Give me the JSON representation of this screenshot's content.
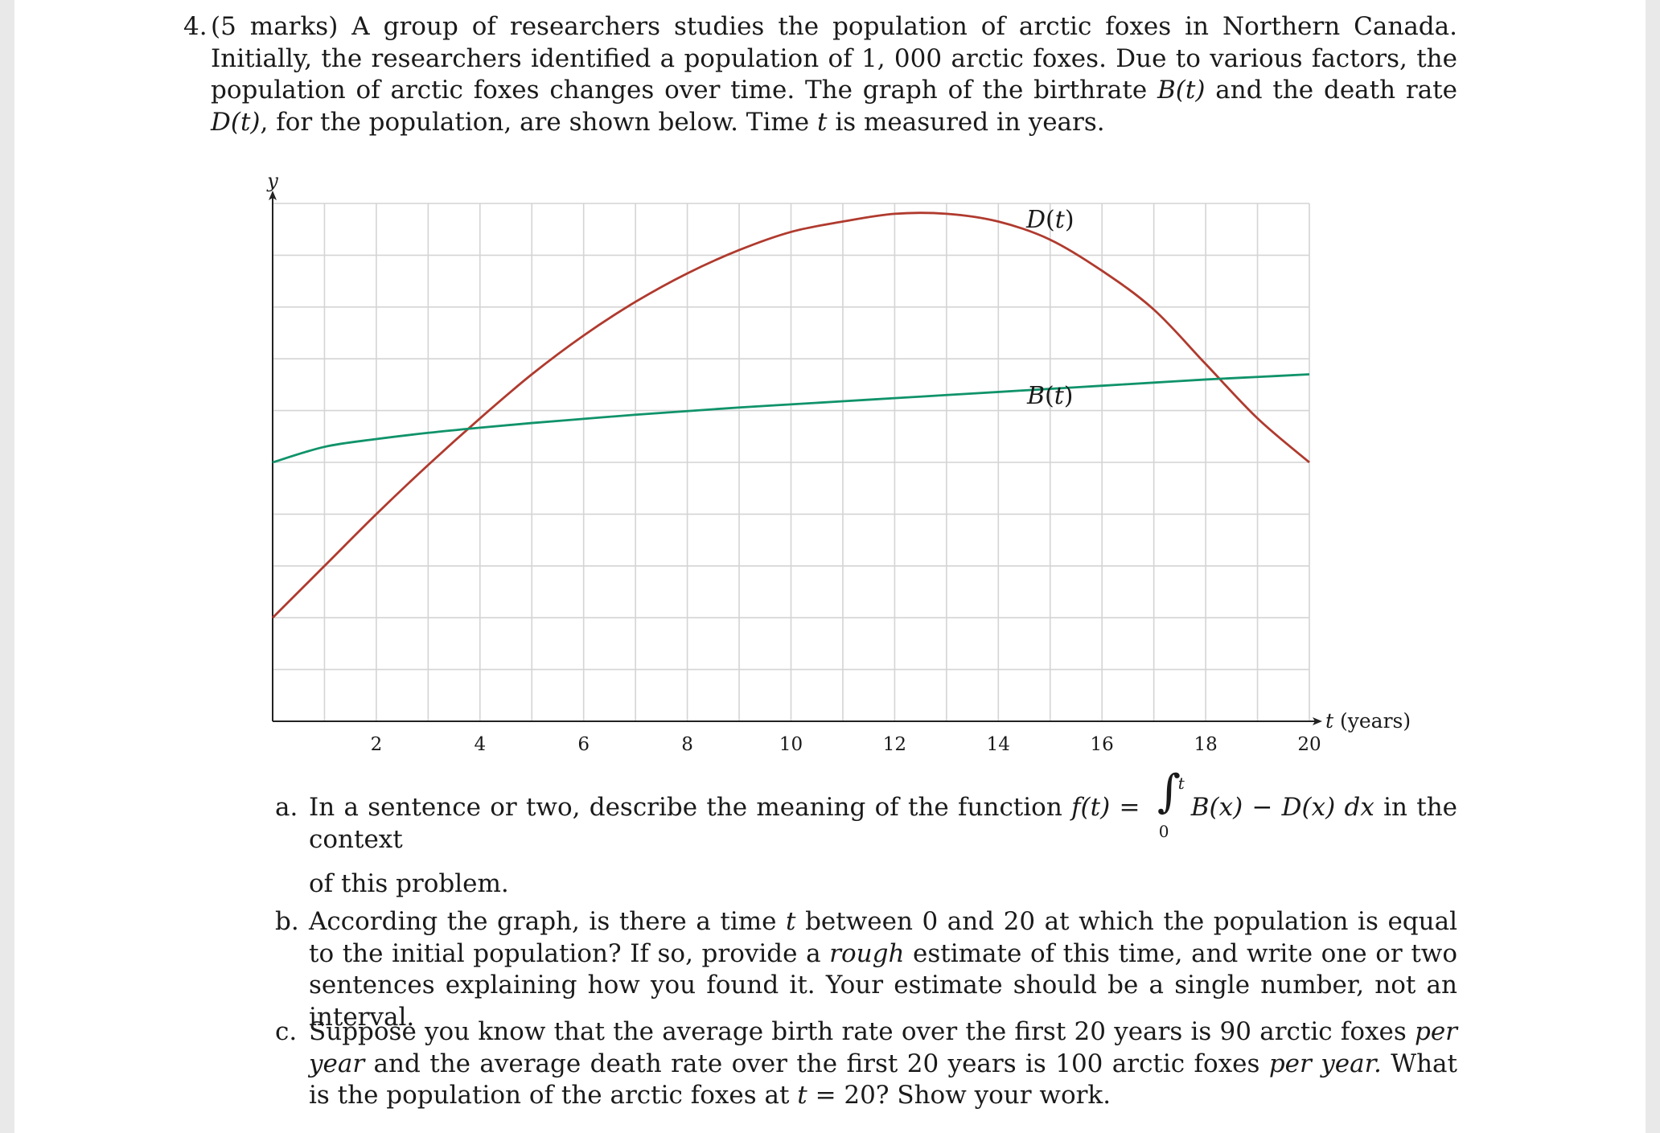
{
  "question": {
    "number": "4.",
    "text_1": "(5 marks) A group of researchers studies the population of arctic foxes in Northern Canada. Initially, the researchers identified a population of 1, 000 arctic foxes. Due to various factors, the population of arctic foxes changes over time. The graph of the birthrate ",
    "b_of_t": "B(t)",
    "text_2": " and the death rate ",
    "d_of_t": "D(t)",
    "text_3": ", for the population, are shown below. Time ",
    "t_var": "t",
    "text_4": " is measured in years."
  },
  "chart_data": {
    "type": "line",
    "title": "",
    "xlabel": "t (years)",
    "ylabel": "y",
    "xlim": [
      0,
      20
    ],
    "ylim": [
      0,
      10
    ],
    "x_ticks": [
      2,
      4,
      6,
      8,
      10,
      12,
      14,
      16,
      18,
      20
    ],
    "x_tick_labels": [
      "2",
      "4",
      "6",
      "8",
      "10",
      "12",
      "14",
      "16",
      "18",
      "20"
    ],
    "grid": true,
    "grid_x_step": 1,
    "grid_y_step": 1,
    "series": [
      {
        "name": "D(t)",
        "color": "#b03a2e",
        "x": [
          0,
          1,
          2,
          3,
          4,
          5,
          6,
          7,
          8,
          9,
          10,
          11,
          12,
          13,
          14,
          15,
          16,
          17,
          18,
          19,
          20
        ],
        "y": [
          2.0,
          3.0,
          4.0,
          4.95,
          5.85,
          6.7,
          7.45,
          8.1,
          8.65,
          9.1,
          9.45,
          9.65,
          9.8,
          9.8,
          9.65,
          9.3,
          8.7,
          7.95,
          6.9,
          5.85,
          5.0
        ]
      },
      {
        "name": "B(t)",
        "color": "#10936a",
        "x": [
          0,
          1,
          2,
          3,
          4,
          5,
          6,
          7,
          8,
          9,
          10,
          11,
          12,
          13,
          14,
          15,
          16,
          17,
          18,
          19,
          20
        ],
        "y": [
          5.0,
          5.3,
          5.45,
          5.57,
          5.67,
          5.76,
          5.84,
          5.92,
          5.99,
          6.06,
          6.12,
          6.18,
          6.24,
          6.3,
          6.36,
          6.42,
          6.48,
          6.54,
          6.6,
          6.65,
          6.7
        ]
      }
    ],
    "curve_labels": [
      {
        "text": "D(t)",
        "x": 15,
        "y": 9.5
      },
      {
        "text": "B(t)",
        "x": 15,
        "y": 6.1
      }
    ]
  },
  "parts": {
    "a": {
      "label": "a.",
      "text_1": "In a sentence or two, describe the meaning of the function ",
      "f_of_t": "f(t)",
      "equals": " = ",
      "integral_upper": "t",
      "integral_lower": "0",
      "integrand": "B(x) − D(x) dx",
      "text_2": " in the context",
      "text_3": "of this problem."
    },
    "b": {
      "label": "b.",
      "text_1": "According the graph, is there a time ",
      "t_var": "t",
      "text_2": " between 0 and 20 at which the population is equal to the initial population? If so, provide a ",
      "rough": "rough",
      "text_3": " estimate of this time, and write one or two sentences explaining how you found it. Your estimate should be a single number, not an interval."
    },
    "c": {
      "label": "c.",
      "text_1": "Suppose you know that the average birth rate over the first 20 years is 90 arctic foxes ",
      "per_year_1": "per year",
      "text_2": " and the average death rate over the first 20 years is 100 arctic foxes ",
      "per_year_2": "per year.",
      "text_3": " What is the population of the arctic foxes at ",
      "t_var": "t",
      "text_4": " = 20? Show your work."
    }
  }
}
